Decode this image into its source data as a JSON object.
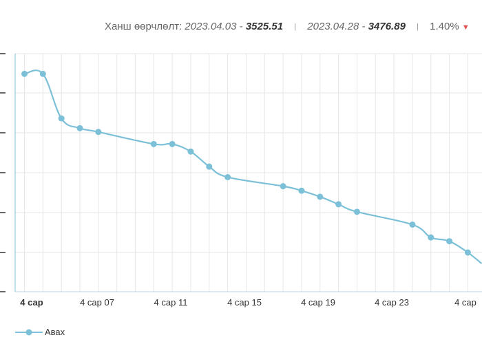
{
  "header": {
    "label": "Ханш өөрчлөлт:",
    "start_date": "2023.04.03",
    "start_value": "3525.51",
    "end_date": "2023.04.28",
    "end_value": "3476.89",
    "separator": "|",
    "change": "1.40%",
    "change_icon": "triangle-down-icon",
    "change_color": "#e05050"
  },
  "chart_data": {
    "type": "line",
    "title": "",
    "xlabel": "",
    "ylabel": "",
    "x_ticks": [
      "4 сар",
      "4 сар 07",
      "4 сар 11",
      "4 сар 15",
      "4 сар 19",
      "4 сар 23",
      "4 сар"
    ],
    "series": [
      {
        "name": "Авах",
        "color": "#7cc0d8",
        "points": [
          [
            "2023-04-03",
            3525.51
          ],
          [
            "2023-04-04",
            3525.51
          ],
          [
            "2023-04-05",
            3519.6
          ],
          [
            "2023-04-06",
            3518.3
          ],
          [
            "2023-04-07",
            3517.8
          ],
          [
            "2023-04-10",
            3516.2
          ],
          [
            "2023-04-11",
            3516.2
          ],
          [
            "2023-04-12",
            3515.2
          ],
          [
            "2023-04-13",
            3513.2
          ],
          [
            "2023-04-14",
            3511.8
          ],
          [
            "2023-04-17",
            3510.6
          ],
          [
            "2023-04-18",
            3510.0
          ],
          [
            "2023-04-19",
            3509.2
          ],
          [
            "2023-04-20",
            3508.2
          ],
          [
            "2023-04-21",
            3507.2
          ],
          [
            "2023-04-24",
            3505.5
          ],
          [
            "2023-04-25",
            3503.8
          ],
          [
            "2023-04-26",
            3503.3
          ],
          [
            "2023-04-27",
            3501.8
          ]
        ]
      }
    ],
    "grid": true,
    "legend_position": "bottom-left"
  },
  "legend": {
    "label": "Авах"
  }
}
